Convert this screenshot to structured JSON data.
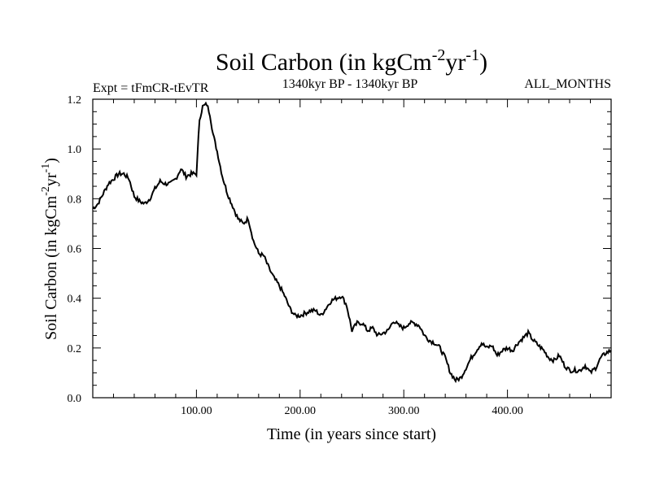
{
  "chart_data": {
    "type": "line",
    "title": "Soil Carbon (in kgCm-2yr-1)",
    "title_main": "Soil Carbon (in kgCm",
    "title_unit_exp1": "-2",
    "title_unit_mid": "yr",
    "title_unit_exp2": "-1",
    "title_close": ")",
    "left_note": "Expt = tFmCR-tEvTR",
    "center_note": "1340kyr BP - 1340kyr BP",
    "right_note": "ALL_MONTHS",
    "xlabel": "Time (in years since start)",
    "ylabel": "Soil Carbon (in kgCm-2yr-1)",
    "ylabel_main": "Soil Carbon (in kgCm",
    "ylabel_exp1": "-2",
    "ylabel_mid": "yr",
    "ylabel_exp2": "-1",
    "ylabel_close": ")",
    "xlim": [
      0,
      500
    ],
    "ylim": [
      0.0,
      1.2
    ],
    "x_ticks": [
      100,
      200,
      300,
      400
    ],
    "x_tick_labels": [
      "100.00",
      "200.00",
      "300.00",
      "400.00"
    ],
    "y_ticks": [
      0.0,
      0.2,
      0.4,
      0.6,
      0.8,
      1.0,
      1.2
    ],
    "y_tick_labels": [
      "0.0",
      "0.2",
      "0.4",
      "0.6",
      "0.8",
      "1.0",
      "1.2"
    ],
    "series": [
      {
        "name": "Soil Carbon",
        "color": "#000000",
        "x": [
          0,
          5,
          10,
          15,
          20,
          25,
          30,
          35,
          40,
          45,
          50,
          55,
          60,
          65,
          70,
          75,
          80,
          85,
          90,
          95,
          100,
          103,
          106,
          110,
          113,
          116,
          120,
          125,
          130,
          135,
          140,
          145,
          150,
          155,
          160,
          165,
          170,
          175,
          180,
          185,
          190,
          195,
          200,
          205,
          210,
          215,
          220,
          225,
          230,
          235,
          240,
          245,
          250,
          255,
          260,
          265,
          270,
          275,
          280,
          285,
          290,
          295,
          300,
          305,
          310,
          315,
          320,
          325,
          330,
          335,
          340,
          345,
          350,
          355,
          360,
          365,
          370,
          375,
          380,
          385,
          390,
          395,
          400,
          405,
          410,
          415,
          420,
          425,
          430,
          435,
          440,
          445,
          450,
          455,
          460,
          465,
          470,
          475,
          480,
          485,
          490,
          495,
          500
        ],
        "values": [
          0.76,
          0.78,
          0.82,
          0.86,
          0.88,
          0.9,
          0.9,
          0.88,
          0.81,
          0.79,
          0.78,
          0.8,
          0.84,
          0.87,
          0.86,
          0.86,
          0.88,
          0.92,
          0.89,
          0.9,
          0.9,
          1.12,
          1.17,
          1.18,
          1.14,
          1.06,
          0.99,
          0.89,
          0.82,
          0.77,
          0.72,
          0.7,
          0.72,
          0.63,
          0.58,
          0.57,
          0.52,
          0.48,
          0.45,
          0.41,
          0.36,
          0.33,
          0.33,
          0.34,
          0.35,
          0.35,
          0.33,
          0.36,
          0.39,
          0.4,
          0.41,
          0.37,
          0.27,
          0.3,
          0.3,
          0.27,
          0.28,
          0.25,
          0.26,
          0.27,
          0.31,
          0.29,
          0.28,
          0.3,
          0.3,
          0.29,
          0.25,
          0.23,
          0.22,
          0.2,
          0.16,
          0.1,
          0.07,
          0.08,
          0.12,
          0.16,
          0.19,
          0.22,
          0.2,
          0.21,
          0.17,
          0.19,
          0.2,
          0.19,
          0.22,
          0.24,
          0.26,
          0.23,
          0.21,
          0.19,
          0.16,
          0.15,
          0.17,
          0.13,
          0.11,
          0.11,
          0.11,
          0.13,
          0.1,
          0.12,
          0.16,
          0.18,
          0.19
        ]
      }
    ]
  }
}
